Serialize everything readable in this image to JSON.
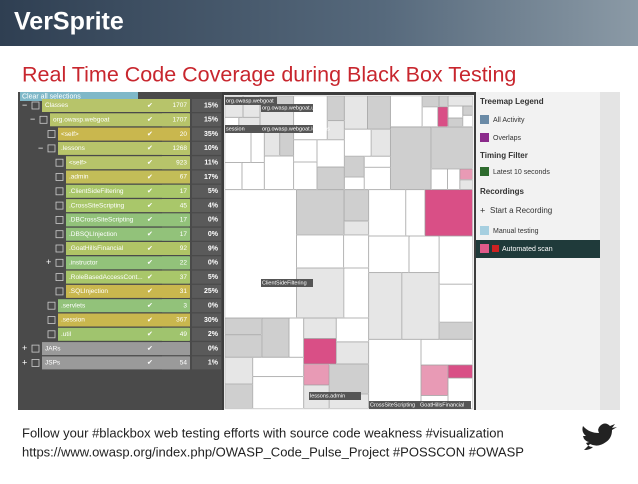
{
  "header": {
    "logo": "VerSprite",
    "title": "Real Time Code Coverage during Black Box Testing"
  },
  "tree": {
    "clear": "Clear all selections",
    "rows": [
      {
        "name": "Classes",
        "count": 1707,
        "percent": "15%",
        "level": 0,
        "toggle": "−",
        "color": "#b7c46a"
      },
      {
        "name": "org.owasp.webgoat",
        "count": 1707,
        "percent": "15%",
        "level": 1,
        "toggle": "−",
        "color": "#b7c46a"
      },
      {
        "name": "<self>",
        "count": 20,
        "percent": "35%",
        "level": 2,
        "color": "#c9b74e"
      },
      {
        "name": ".lessons",
        "count": 1268,
        "percent": "10%",
        "level": 2,
        "toggle": "−",
        "color": "#b7c46a"
      },
      {
        "name": "<self>",
        "count": 923,
        "percent": "11%",
        "level": 3,
        "color": "#b7c46a"
      },
      {
        "name": ".admin",
        "count": 67,
        "percent": "17%",
        "level": 3,
        "color": "#c3bd58"
      },
      {
        "name": ".ClientSideFiltering",
        "count": 17,
        "percent": "5%",
        "level": 3,
        "color": "#a9c76a"
      },
      {
        "name": ".CrossSiteScripting",
        "count": 45,
        "percent": "4%",
        "level": 3,
        "color": "#a9c76a"
      },
      {
        "name": ".DBCrossSiteScripting",
        "count": 17,
        "percent": "0%",
        "level": 3,
        "color": "#92c27a"
      },
      {
        "name": ".DBSQLInjection",
        "count": 17,
        "percent": "0%",
        "level": 3,
        "color": "#92c27a"
      },
      {
        "name": ".GoatHillsFinancial",
        "count": 92,
        "percent": "9%",
        "level": 3,
        "color": "#b0c466"
      },
      {
        "name": ".instructor",
        "count": 22,
        "percent": "0%",
        "level": 3,
        "toggle": "+",
        "color": "#92c27a"
      },
      {
        "name": ".RoleBasedAccessCont...",
        "count": 37,
        "percent": "5%",
        "level": 3,
        "color": "#a9c76a"
      },
      {
        "name": ".SQLInjection",
        "count": 31,
        "percent": "25%",
        "level": 3,
        "color": "#c9b74e"
      },
      {
        "name": ".servlets",
        "count": 3,
        "percent": "0%",
        "level": 2,
        "color": "#92c27a"
      },
      {
        "name": ".session",
        "count": 367,
        "percent": "30%",
        "level": 2,
        "color": "#c9b74e"
      },
      {
        "name": ".util",
        "count": 49,
        "percent": "2%",
        "level": 2,
        "color": "#a0c46e"
      },
      {
        "name": "JARs",
        "percent": "0%",
        "level": 0,
        "toggle": "+",
        "color": "#9a9a9a"
      },
      {
        "name": "JSPs",
        "count": 54,
        "percent": "1%",
        "level": 0,
        "toggle": "+",
        "color": "#9a9a9a"
      }
    ]
  },
  "treemap": {
    "labels": [
      "org.owasp.webgoat",
      "org.owasp.webgoat.util",
      "session",
      "org.owasp.webgoat.lessons",
      "ClientSideFiltering",
      "lessons.admin",
      "CrossSiteScripting",
      "GoatHillsFinancial"
    ]
  },
  "legend": {
    "title": "Treemap Legend",
    "all": "All Activity",
    "overlaps": "Overlaps",
    "timing": "Timing Filter",
    "latest": "Latest 10 seconds",
    "recordings": "Recordings",
    "start": "Start a Recording",
    "manual": "Manual testing",
    "auto": "Automated scan"
  },
  "footer": {
    "line1": "Follow your #blackbox web testing efforts with source code weakness #visualization",
    "line2": "https://www.owasp.org/index.php/OWASP_Code_Pulse_Project #POSSCON #OWASP"
  }
}
